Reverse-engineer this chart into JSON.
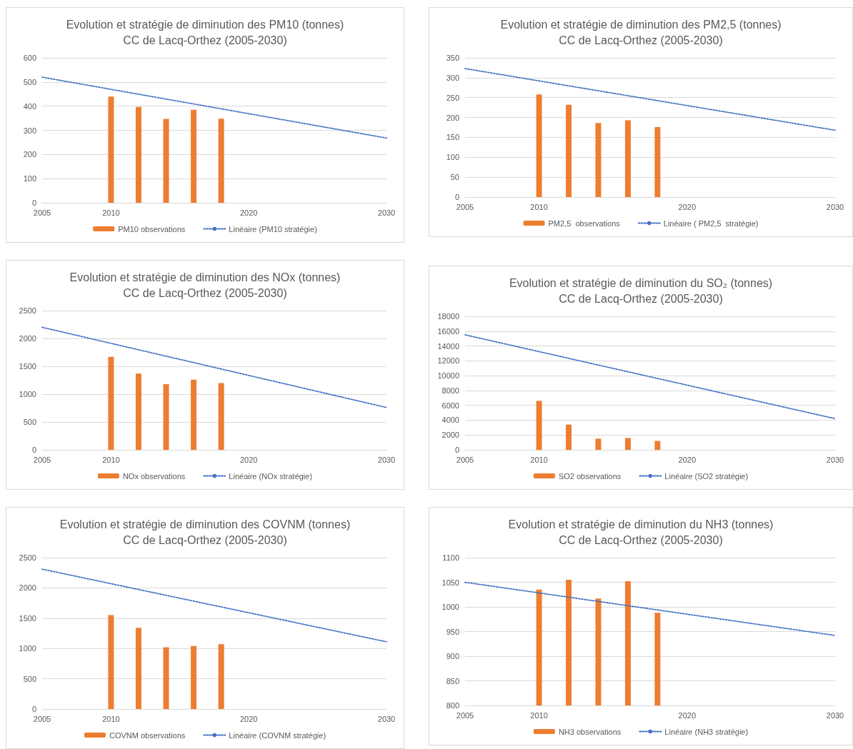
{
  "chart_data": [
    {
      "type": "bar",
      "title": "Evolution et stratégie de diminution des PM10 (tonnes)",
      "subtitle": "CC de Lacq-Orthez (2005-2030)",
      "xlim": [
        2005,
        2030
      ],
      "xticks": [
        2005,
        2010,
        2020,
        2030
      ],
      "ylim": [
        0,
        600
      ],
      "yticks": [
        0,
        100,
        200,
        300,
        400,
        500,
        600
      ],
      "grid": "y",
      "legend": "bottom",
      "series": [
        {
          "name": "PM10 observations",
          "color": "#ed7d31",
          "x": [
            2010,
            2012,
            2014,
            2016,
            2018
          ],
          "values": [
            440,
            397,
            347,
            385,
            348
          ]
        },
        {
          "name": "Linéaire (PM10 stratégie)",
          "type": "line",
          "color": "#4472c4",
          "line_style": "dotted",
          "x": [
            2005,
            2030
          ],
          "values": [
            520,
            268
          ]
        }
      ]
    },
    {
      "type": "bar",
      "title": "Evolution et stratégie de diminution des PM2,5 (tonnes)",
      "subtitle": "CC de Lacq-Orthez (2005-2030)",
      "xlim": [
        2005,
        2030
      ],
      "xticks": [
        2005,
        2010,
        2020,
        2030
      ],
      "ylim": [
        0,
        350
      ],
      "yticks": [
        0,
        50,
        100,
        150,
        200,
        250,
        300,
        350
      ],
      "grid": "y",
      "legend": "bottom",
      "series": [
        {
          "name": "PM2,5  observations",
          "color": "#ed7d31",
          "x": [
            2010,
            2012,
            2014,
            2016,
            2018
          ],
          "values": [
            258,
            232,
            186,
            193,
            176
          ]
        },
        {
          "name": "Linéaire ( PM2,5  stratégie)",
          "type": "line",
          "color": "#4472c4",
          "line_style": "dotted",
          "x": [
            2005,
            2030
          ],
          "values": [
            323,
            168
          ]
        }
      ]
    },
    {
      "type": "bar",
      "title": "Evolution et stratégie de diminution des NOx (tonnes)",
      "subtitle": "CC de Lacq-Orthez (2005-2030)",
      "xlim": [
        2005,
        2030
      ],
      "xticks": [
        2005,
        2010,
        2020,
        2030
      ],
      "ylim": [
        0,
        2500
      ],
      "yticks": [
        0,
        500,
        1000,
        1500,
        2000,
        2500
      ],
      "grid": "y",
      "legend": "bottom",
      "series": [
        {
          "name": "NOx observations",
          "color": "#ed7d31",
          "x": [
            2010,
            2012,
            2014,
            2016,
            2018
          ],
          "values": [
            1670,
            1370,
            1180,
            1260,
            1200
          ]
        },
        {
          "name": "Linéaire (NOx stratégie)",
          "type": "line",
          "color": "#4472c4",
          "line_style": "dotted",
          "x": [
            2005,
            2030
          ],
          "values": [
            2200,
            760
          ]
        }
      ]
    },
    {
      "type": "bar",
      "title": "Evolution et stratégie de diminution du SO₂ (tonnes)",
      "subtitle": "CC de Lacq-Orthez (2005-2030)",
      "xlim": [
        2005,
        2030
      ],
      "xticks": [
        2005,
        2010,
        2020,
        2030
      ],
      "ylim": [
        0,
        18000
      ],
      "yticks": [
        0,
        2000,
        4000,
        6000,
        8000,
        10000,
        12000,
        14000,
        16000,
        18000
      ],
      "grid": "y",
      "legend": "bottom",
      "series": [
        {
          "name": "SO2 observations",
          "color": "#ed7d31",
          "x": [
            2010,
            2012,
            2014,
            2016,
            2018
          ],
          "values": [
            6600,
            3400,
            1500,
            1600,
            1200
          ]
        },
        {
          "name": "Linéaire (SO2 stratégie)",
          "type": "line",
          "color": "#4472c4",
          "line_style": "dotted",
          "x": [
            2005,
            2030
          ],
          "values": [
            15500,
            4200
          ]
        }
      ]
    },
    {
      "type": "bar",
      "title": "Evolution et stratégie de diminution des COVNM (tonnes)",
      "subtitle": "CC de Lacq-Orthez (2005-2030)",
      "xlim": [
        2005,
        2030
      ],
      "xticks": [
        2005,
        2010,
        2020,
        2030
      ],
      "ylim": [
        0,
        2500
      ],
      "yticks": [
        0,
        500,
        1000,
        1500,
        2000,
        2500
      ],
      "grid": "y",
      "legend": "bottom",
      "series": [
        {
          "name": "COVNM observations",
          "color": "#ed7d31",
          "x": [
            2010,
            2012,
            2014,
            2016,
            2018
          ],
          "values": [
            1550,
            1340,
            1020,
            1040,
            1070
          ]
        },
        {
          "name": "Linéaire (COVNM stratégie)",
          "type": "line",
          "color": "#4472c4",
          "line_style": "dotted",
          "x": [
            2005,
            2030
          ],
          "values": [
            2310,
            1110
          ]
        }
      ]
    },
    {
      "type": "bar",
      "title": "Evolution et stratégie de diminution du NH3 (tonnes)",
      "subtitle": "CC de Lacq-Orthez (2005-2030)",
      "xlim": [
        2005,
        2030
      ],
      "xticks": [
        2005,
        2010,
        2020,
        2030
      ],
      "ylim": [
        800,
        1100
      ],
      "yticks": [
        800,
        850,
        900,
        950,
        1000,
        1050,
        1100
      ],
      "grid": "y",
      "legend": "bottom",
      "series": [
        {
          "name": "NH3 observations",
          "color": "#ed7d31",
          "x": [
            2010,
            2012,
            2014,
            2016,
            2018
          ],
          "values": [
            1035,
            1055,
            1017,
            1052,
            988
          ]
        },
        {
          "name": "Linéaire (NH3 stratégie)",
          "type": "line",
          "color": "#4472c4",
          "line_style": "dotted",
          "x": [
            2005,
            2030
          ],
          "values": [
            1050,
            942
          ]
        }
      ]
    }
  ]
}
